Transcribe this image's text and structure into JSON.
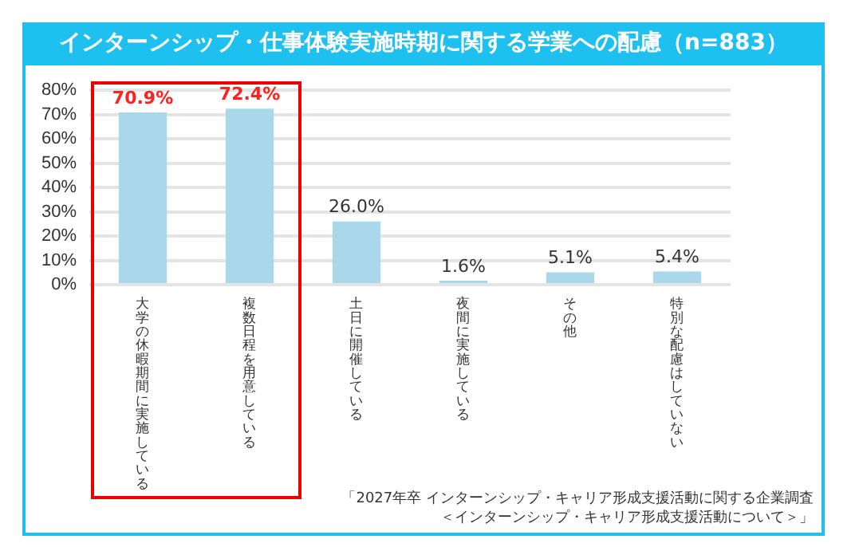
{
  "chart_data": {
    "type": "bar",
    "title": "インターンシップ・仕事体験実施時期に関する学業への配慮（n=883）",
    "categories": [
      "大学の休暇期間に実施している",
      "複数日程を用意している",
      "土日に開催している",
      "夜間に実施している",
      "その他",
      "特別な配慮はしていない"
    ],
    "values": [
      70.9,
      72.4,
      26.0,
      1.6,
      5.1,
      5.4
    ],
    "value_labels": [
      "70.9%",
      "72.4%",
      "26.0%",
      "1.6%",
      "5.1%",
      "5.4%"
    ],
    "color": "#a8d8ea",
    "ylim": [
      0,
      80
    ],
    "yticks": [
      {
        "value": 0,
        "label": "0%"
      },
      {
        "value": 10,
        "label": "10%"
      },
      {
        "value": 20,
        "label": "20%"
      },
      {
        "value": 30,
        "label": "30%"
      },
      {
        "value": 40,
        "label": "40%"
      },
      {
        "value": 50,
        "label": "50%"
      },
      {
        "value": 60,
        "label": "60%"
      },
      {
        "value": 70,
        "label": "70%"
      },
      {
        "value": 80,
        "label": "80%"
      }
    ],
    "grid": "y",
    "legend": false,
    "annotations": [
      "「2027年卒 インターンシップ・キャリア形成支援活動に関する企業調査",
      "＜インターンシップ・キャリア形成支援活動について＞」"
    ]
  }
}
